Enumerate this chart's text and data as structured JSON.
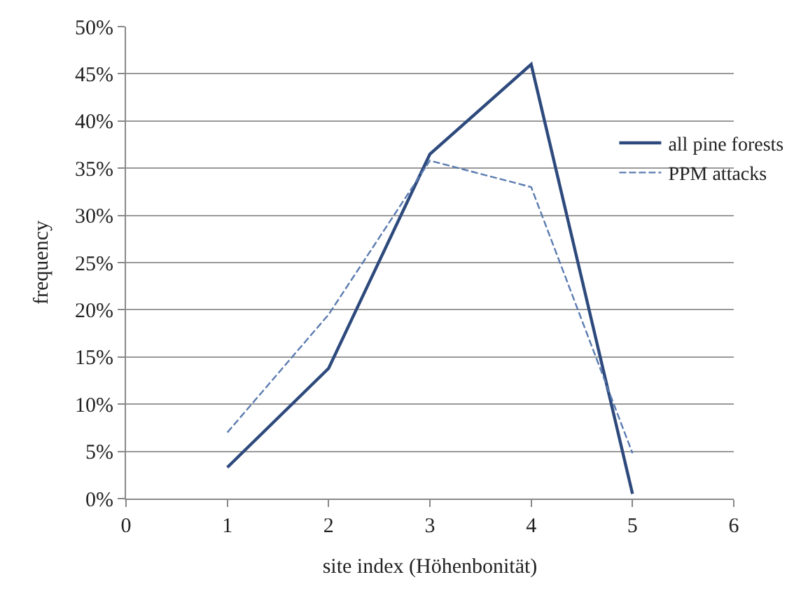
{
  "chart_data": {
    "type": "line",
    "xlabel": "site index (Höhenbonität)",
    "ylabel": "frequency",
    "x": [
      1,
      2,
      3,
      4,
      5
    ],
    "series": [
      {
        "name": "all pine forests",
        "color": "#2e4a7d",
        "values": [
          3.3,
          13.8,
          36.5,
          46,
          0.5
        ],
        "line_style": "solid"
      },
      {
        "name": "PPM attacks",
        "color": "#5a7bb0",
        "values": [
          7,
          19.5,
          35.8,
          33,
          4.8
        ],
        "line_style": "dashed"
      }
    ],
    "xlim": [
      0,
      6
    ],
    "xticks": [
      0,
      1,
      2,
      3,
      4,
      5,
      6
    ],
    "ylim": [
      0,
      50
    ],
    "yticks": [
      {
        "value": 0,
        "label": "0%"
      },
      {
        "value": 5,
        "label": "5%"
      },
      {
        "value": 10,
        "label": "10%"
      },
      {
        "value": 15,
        "label": "15%"
      },
      {
        "value": 20,
        "label": "20%"
      },
      {
        "value": 25,
        "label": "25%"
      },
      {
        "value": 30,
        "label": "30%"
      },
      {
        "value": 35,
        "label": "35%"
      },
      {
        "value": 40,
        "label": "40%"
      },
      {
        "value": 45,
        "label": "45%"
      },
      {
        "value": 50,
        "label": "50%"
      }
    ],
    "grid": "y",
    "legend": "right",
    "marker": "none"
  }
}
